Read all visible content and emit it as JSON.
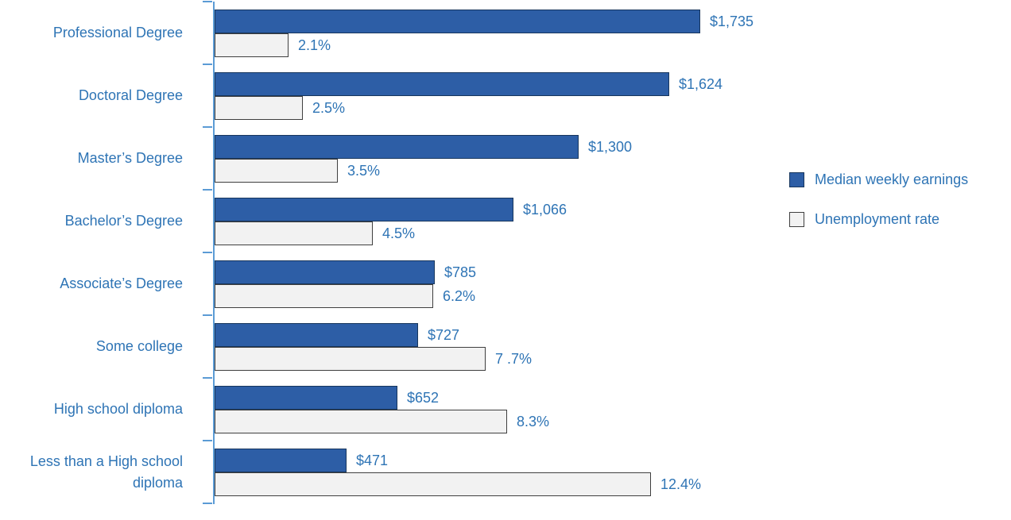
{
  "chart_data": {
    "type": "bar",
    "orientation": "horizontal",
    "title": "",
    "xlabel": "",
    "ylabel": "",
    "grid": false,
    "categories": [
      "Professional Degree",
      "Doctoral Degree",
      "Master’s Degree",
      "Bachelor’s Degree",
      "Associate’s Degree",
      "Some college",
      "High school diploma",
      "Less than a High school diploma"
    ],
    "series": [
      {
        "name": "Median weekly earnings",
        "values": [
          1735,
          1624,
          1300,
          1066,
          785,
          727,
          652,
          471
        ],
        "value_labels": [
          "$1,735",
          "$1,624",
          "$1,300",
          "$1,066",
          "$785",
          "$727",
          "$652",
          "$471"
        ],
        "color": "#2d5ea6",
        "axis_max": 2100
      },
      {
        "name": "Unemployment rate",
        "values": [
          2.1,
          2.5,
          3.5,
          4.5,
          6.2,
          7.7,
          8.3,
          12.4
        ],
        "value_labels": [
          "2.1%",
          "2.5%",
          "3.5%",
          "4.5%",
          "6.2%",
          "7 .7%",
          "8.3%",
          "12.4%"
        ],
        "color": "#f2f2f2",
        "axis_max": 16.7
      }
    ],
    "legend": {
      "position": "right",
      "items": [
        {
          "label": "Median weekly earnings",
          "swatch_color": "#2d5ea6"
        },
        {
          "label": "Unemployment rate",
          "swatch_color": "#f2f2f2"
        }
      ]
    }
  },
  "style_colors": {
    "label_text": "#2e74b5",
    "axis_line": "#5b9bd5",
    "earnings_bar_border": "#17365d",
    "unemployment_bar_border": "#3f3f3f"
  }
}
